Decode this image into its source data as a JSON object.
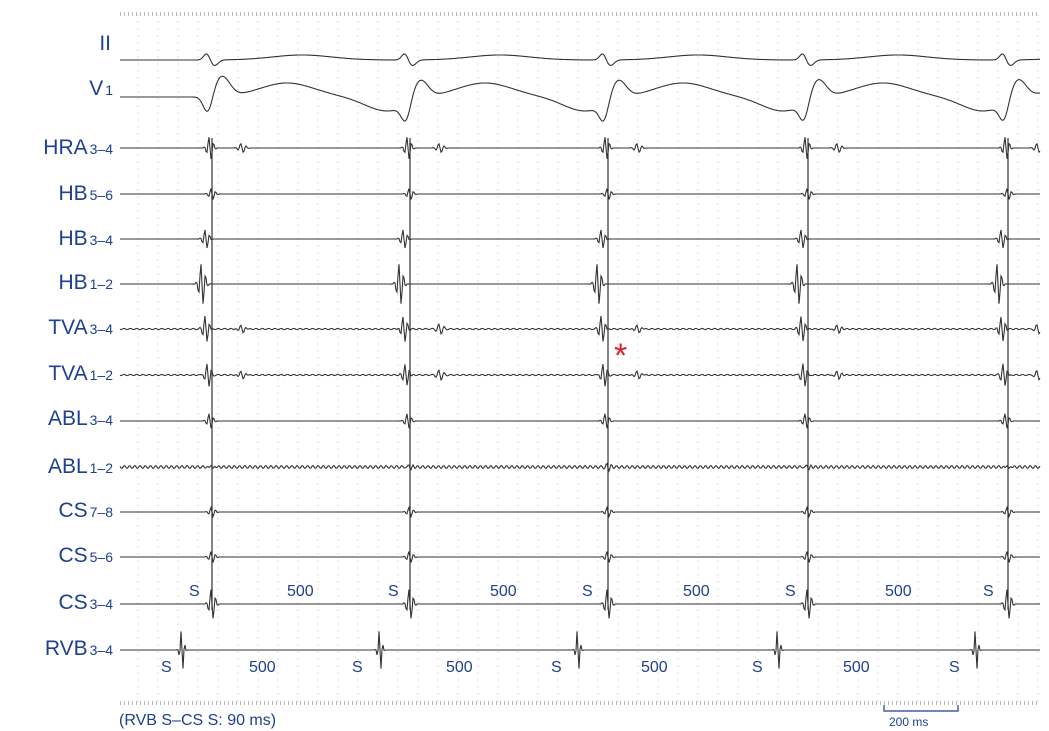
{
  "leads": [
    {
      "name": "II",
      "sub": ""
    },
    {
      "name": "V",
      "sub": "1"
    },
    {
      "name": "HRA",
      "sub": "3–4"
    },
    {
      "name": "HB",
      "sub": "5–6"
    },
    {
      "name": "HB",
      "sub": "3–4"
    },
    {
      "name": "HB",
      "sub": "1–2"
    },
    {
      "name": "TVA",
      "sub": "3–4"
    },
    {
      "name": "TVA",
      "sub": "1–2"
    },
    {
      "name": "ABL",
      "sub": "3–4"
    },
    {
      "name": "ABL",
      "sub": "1–2"
    },
    {
      "name": "CS",
      "sub": "7–8"
    },
    {
      "name": "CS",
      "sub": "5–6"
    },
    {
      "name": "CS",
      "sub": "3–4"
    },
    {
      "name": "RVB",
      "sub": "3–4"
    }
  ],
  "stim_label": "S",
  "cycle_length_label": "500",
  "cs_stim_count": 5,
  "cs_interval_count": 4,
  "rvb_stim_count": 5,
  "rvb_interval_count": 4,
  "marker_symbol": "*",
  "caption": "(RVB S–CS S:  90 ms)",
  "scale_bar_label": "200 ms",
  "colors": {
    "label": "#1f3f8f",
    "trace": "#333333",
    "grid": "#9a9a9a",
    "marker": "#d8232a"
  }
}
